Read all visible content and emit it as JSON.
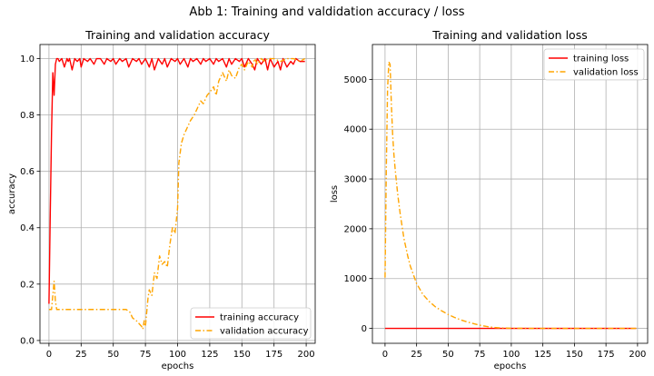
{
  "figure_title": "Abb 1: Training and valdidation accuracy / loss",
  "colors": {
    "training": "#ff0000",
    "validation": "#ffa500",
    "grid": "#b0b0b0",
    "axis": "#000000"
  },
  "chart_data": [
    {
      "type": "line",
      "title": "Training and validation accuracy",
      "xlabel": "epochs",
      "ylabel": "accuracy",
      "xlim": [
        -7,
        207
      ],
      "ylim": [
        -0.01,
        1.05
      ],
      "xticks": [
        0,
        25,
        50,
        75,
        100,
        125,
        150,
        175,
        200
      ],
      "yticks": [
        0.0,
        0.2,
        0.4,
        0.6,
        0.8,
        1.0
      ],
      "ytick_labels": [
        "0.0",
        "0.2",
        "0.4",
        "0.6",
        "0.8",
        "1.0"
      ],
      "grid": true,
      "legend_position": "lower-right",
      "series": [
        {
          "name": "training accuracy",
          "style": "solid",
          "x": [
            0,
            1,
            2,
            3,
            4,
            5,
            6,
            7,
            8,
            10,
            12,
            14,
            15,
            16,
            18,
            20,
            22,
            24,
            25,
            27,
            30,
            32,
            35,
            37,
            40,
            43,
            45,
            48,
            50,
            52,
            55,
            57,
            60,
            62,
            65,
            68,
            70,
            72,
            75,
            78,
            80,
            82,
            85,
            88,
            90,
            92,
            95,
            98,
            100,
            102,
            105,
            108,
            110,
            112,
            115,
            118,
            120,
            122,
            125,
            128,
            130,
            132,
            135,
            138,
            140,
            142,
            145,
            148,
            150,
            152,
            155,
            158,
            160,
            162,
            165,
            168,
            170,
            172,
            175,
            178,
            180,
            182,
            185,
            188,
            190,
            192,
            195,
            198,
            199
          ],
          "y": [
            0.13,
            0.45,
            0.74,
            0.95,
            0.87,
            0.98,
            1.0,
            1.0,
            0.99,
            1.0,
            0.97,
            1.0,
            0.99,
            1.0,
            0.96,
            1.0,
            0.99,
            1.0,
            0.97,
            1.0,
            0.99,
            1.0,
            0.98,
            1.0,
            1.0,
            0.98,
            1.0,
            0.99,
            1.0,
            0.98,
            1.0,
            0.99,
            1.0,
            0.97,
            1.0,
            0.99,
            1.0,
            0.98,
            1.0,
            0.97,
            1.0,
            0.96,
            1.0,
            0.98,
            1.0,
            0.97,
            1.0,
            0.99,
            1.0,
            0.98,
            1.0,
            0.97,
            1.0,
            0.99,
            1.0,
            0.98,
            1.0,
            0.99,
            1.0,
            0.98,
            1.0,
            0.99,
            1.0,
            0.97,
            1.0,
            0.98,
            1.0,
            0.99,
            1.0,
            0.97,
            1.0,
            0.98,
            0.96,
            1.0,
            0.98,
            1.0,
            0.96,
            1.0,
            0.97,
            0.99,
            0.96,
            1.0,
            0.97,
            0.99,
            0.98,
            1.0,
            0.99,
            0.99,
            0.99
          ]
        },
        {
          "name": "validation accuracy",
          "style": "dashdot",
          "x": [
            0,
            2,
            4,
            5,
            6,
            8,
            10,
            20,
            30,
            40,
            50,
            60,
            63,
            65,
            68,
            70,
            72,
            73,
            74,
            75,
            76,
            77,
            78,
            80,
            82,
            84,
            86,
            88,
            90,
            92,
            94,
            96,
            98,
            100,
            101,
            103,
            105,
            107,
            110,
            113,
            115,
            118,
            120,
            123,
            125,
            128,
            130,
            132,
            135,
            138,
            140,
            142,
            145,
            148,
            150,
            152,
            155,
            158,
            160,
            162,
            165,
            168,
            170,
            175,
            180,
            185,
            190,
            195,
            199
          ],
          "y": [
            0.11,
            0.11,
            0.21,
            0.14,
            0.11,
            0.11,
            0.11,
            0.11,
            0.11,
            0.11,
            0.11,
            0.11,
            0.1,
            0.08,
            0.07,
            0.06,
            0.05,
            0.04,
            0.07,
            0.05,
            0.1,
            0.15,
            0.18,
            0.16,
            0.24,
            0.22,
            0.3,
            0.27,
            0.28,
            0.26,
            0.34,
            0.4,
            0.38,
            0.47,
            0.63,
            0.7,
            0.73,
            0.75,
            0.78,
            0.8,
            0.82,
            0.85,
            0.84,
            0.87,
            0.88,
            0.9,
            0.87,
            0.92,
            0.95,
            0.92,
            0.96,
            0.94,
            0.93,
            0.97,
            0.98,
            0.96,
            0.99,
            0.97,
            1.0,
            0.98,
            1.0,
            0.99,
            1.0,
            1.0,
            0.99,
            1.0,
            1.0,
            0.99,
            1.0
          ]
        }
      ]
    },
    {
      "type": "line",
      "title": "Training and validation loss",
      "xlabel": "epochs",
      "ylabel": "loss",
      "xlim": [
        -10,
        208
      ],
      "ylim": [
        -300,
        5700
      ],
      "xticks": [
        0,
        25,
        50,
        75,
        100,
        125,
        150,
        175,
        200
      ],
      "yticks": [
        0,
        1000,
        2000,
        3000,
        4000,
        5000
      ],
      "ytick_labels": [
        "0",
        "1000",
        "2000",
        "3000",
        "4000",
        "5000"
      ],
      "grid": true,
      "legend_position": "upper-right",
      "series": [
        {
          "name": "training loss",
          "style": "solid",
          "x": [
            0,
            50,
            100,
            150,
            199
          ],
          "y": [
            0,
            0,
            0,
            0,
            0
          ]
        },
        {
          "name": "validation loss",
          "style": "dashdot",
          "x": [
            0,
            1,
            2,
            3,
            4,
            5,
            6,
            7,
            8,
            10,
            12,
            15,
            18,
            20,
            25,
            30,
            35,
            40,
            45,
            50,
            55,
            60,
            65,
            70,
            75,
            80,
            85,
            90,
            95,
            100,
            110,
            120,
            130,
            140,
            150,
            160,
            170,
            180,
            190,
            199
          ],
          "y": [
            1020,
            3200,
            4800,
            5350,
            5300,
            4500,
            3900,
            3500,
            3200,
            2700,
            2300,
            1800,
            1450,
            1250,
            900,
            680,
            540,
            430,
            350,
            280,
            220,
            170,
            130,
            95,
            65,
            40,
            22,
            12,
            6,
            3,
            1,
            0,
            0,
            0,
            0,
            0,
            0,
            0,
            0,
            0
          ]
        }
      ]
    }
  ]
}
